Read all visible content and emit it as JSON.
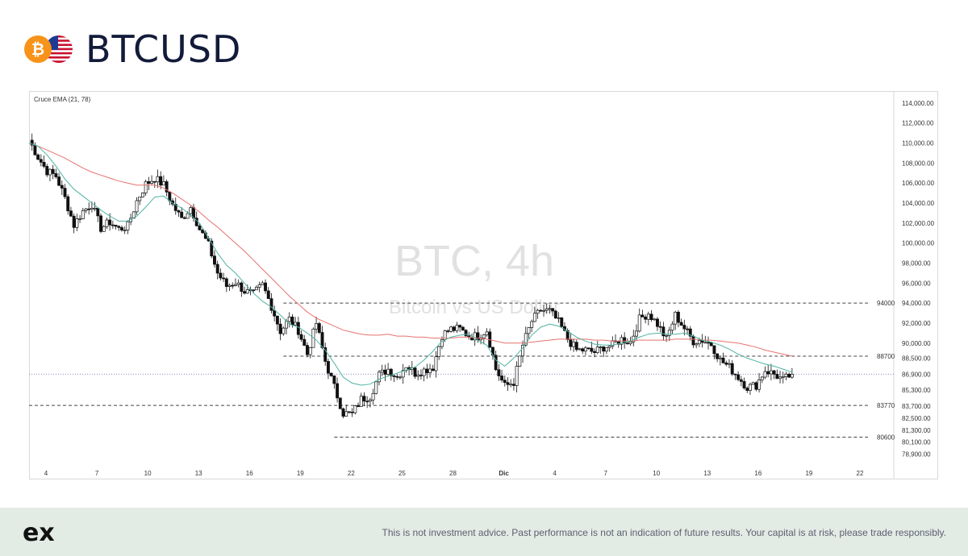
{
  "header": {
    "symbol": "BTCUSD",
    "coin_icon": "bitcoin-icon",
    "flag_icon": "us-flag-icon"
  },
  "chart_data": {
    "type": "candlestick",
    "indicator_label": "Cruce EMA (21, 78)",
    "watermark": {
      "title": "BTC, 4h",
      "subtitle": "Bitcoin vs US Dollar"
    },
    "y_range": [
      77500,
      115200
    ],
    "y_ticks": [
      "78,900.00",
      "80,100.00",
      "81,300.00",
      "82,500.00",
      "83,700.00",
      "85,300.00",
      "86,900.00",
      "88,500.00",
      "90,000.00",
      "92,000.00",
      "94,000.00",
      "96,000.00",
      "98,000.00",
      "100,000.00",
      "102,000.00",
      "104,000.00",
      "106,000.00",
      "108,000.00",
      "110,000.00",
      "112,000.00",
      "114,000.00"
    ],
    "x_range_days": [
      "Nov 3",
      "Dec 24"
    ],
    "x_ticks": [
      {
        "label": "4",
        "date": "Nov 4",
        "bold": false
      },
      {
        "label": "7",
        "date": "Nov 7",
        "bold": false
      },
      {
        "label": "10",
        "date": "Nov 10",
        "bold": false
      },
      {
        "label": "13",
        "date": "Nov 13",
        "bold": false
      },
      {
        "label": "16",
        "date": "Nov 16",
        "bold": false
      },
      {
        "label": "19",
        "date": "Nov 19",
        "bold": false
      },
      {
        "label": "22",
        "date": "Nov 22",
        "bold": false
      },
      {
        "label": "25",
        "date": "Nov 25",
        "bold": false
      },
      {
        "label": "28",
        "date": "Nov 28",
        "bold": false
      },
      {
        "label": "Dic",
        "date": "Dec 1",
        "bold": true
      },
      {
        "label": "4",
        "date": "Dec 4",
        "bold": false
      },
      {
        "label": "7",
        "date": "Dec 7",
        "bold": false
      },
      {
        "label": "10",
        "date": "Dec 10",
        "bold": false
      },
      {
        "label": "13",
        "date": "Dec 13",
        "bold": false
      },
      {
        "label": "16",
        "date": "Dec 16",
        "bold": false
      },
      {
        "label": "19",
        "date": "Dec 19",
        "bold": false
      },
      {
        "label": "22",
        "date": "Dec 22",
        "bold": false
      }
    ],
    "levels": [
      {
        "label": "94000",
        "value": 94000,
        "from": "Nov 18"
      },
      {
        "label": "88700",
        "value": 88700,
        "from": "Nov 18"
      },
      {
        "label": "83770",
        "value": 83770,
        "from": "Nov 3"
      },
      {
        "label": "80600",
        "value": 80600,
        "from": "Nov 21"
      }
    ],
    "current_price": 86900,
    "close_series": {
      "start": "Nov 3",
      "end": "Dec 18",
      "values": [
        110300,
        108600,
        107200,
        106700,
        104500,
        101800,
        103200,
        103900,
        101500,
        102100,
        101400,
        101700,
        104200,
        105900,
        106500,
        105800,
        103800,
        102400,
        103600,
        101400,
        99800,
        97000,
        95700,
        96100,
        95200,
        94900,
        95800,
        93700,
        91200,
        92400,
        91300,
        88900,
        92000,
        88200,
        85600,
        83000,
        82900,
        84400,
        84700,
        86800,
        87400,
        86600,
        87800,
        87000,
        87300,
        87600,
        90800,
        91400,
        91400,
        90700,
        90700,
        91300,
        87400,
        85700,
        86100,
        89800,
        92200,
        93300,
        93200,
        92100,
        90400,
        89300,
        89300,
        89100,
        89600,
        89800,
        90400,
        90100,
        92400,
        93000,
        91900,
        90400,
        92800,
        91500,
        90200,
        90300,
        89900,
        88300,
        87600,
        86600,
        85600,
        85800,
        87300,
        86900,
        86300,
        86900
      ]
    },
    "ema_21": {
      "start": "Nov 3",
      "end": "Dec 18",
      "values": [
        110000,
        109700,
        108800,
        107700,
        106400,
        105400,
        104700,
        104000,
        103300,
        102700,
        102200,
        102200,
        102700,
        103600,
        104600,
        104700,
        104000,
        103500,
        102800,
        102000,
        100500,
        99000,
        97800,
        97000,
        96000,
        95000,
        94200,
        93600,
        92800,
        91900,
        91600,
        91000,
        90300,
        89300,
        88000,
        86600,
        86000,
        85800,
        85900,
        86400,
        86700,
        87000,
        87300,
        87600,
        88300,
        89200,
        90200,
        90600,
        90800,
        90900,
        90300,
        89800,
        88300,
        87700,
        88500,
        89500,
        90800,
        91600,
        91900,
        91700,
        91200,
        90600,
        90200,
        89900,
        89800,
        89800,
        90000,
        90200,
        90600,
        90900,
        91000,
        90900,
        90900,
        91000,
        90700,
        90300,
        90100,
        89800,
        89400,
        88900,
        88500,
        88200,
        87900,
        87700,
        87400,
        87100
      ]
    },
    "ema_78": {
      "start": "Nov 3",
      "end": "Dec 18",
      "values": [
        110000,
        109700,
        109300,
        108900,
        108500,
        108000,
        107500,
        107100,
        106800,
        106500,
        106200,
        106000,
        105800,
        105800,
        105800,
        105500,
        105000,
        104400,
        103800,
        103100,
        102300,
        101600,
        100800,
        100000,
        99200,
        98300,
        97400,
        96500,
        95600,
        94700,
        93900,
        93100,
        92500,
        92100,
        91700,
        91300,
        91100,
        90900,
        90800,
        90800,
        90900,
        90700,
        90700,
        90600,
        90600,
        90500,
        90500,
        90500,
        90600,
        90600,
        90500,
        90400,
        90200,
        90000,
        90000,
        90000,
        90100,
        90200,
        90300,
        90400,
        90400,
        90400,
        90400,
        90300,
        90300,
        90200,
        90200,
        90200,
        90300,
        90300,
        90300,
        90300,
        90400,
        90400,
        90400,
        90300,
        90300,
        90200,
        90100,
        90000,
        89800,
        89600,
        89300,
        89100,
        88900,
        88700
      ]
    }
  },
  "footer": {
    "logo": "ex",
    "disclaimer": "This is not investment advice. Past performance is not an indication of future results. Your capital is at risk, please trade responsibly."
  }
}
